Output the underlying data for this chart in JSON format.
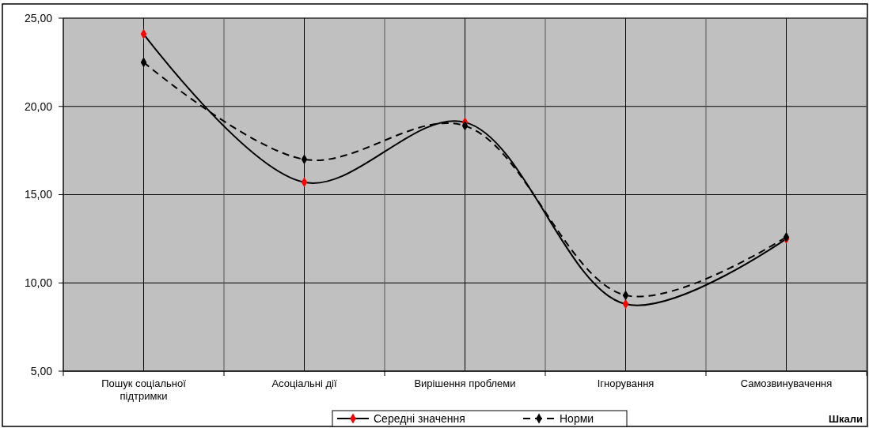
{
  "chart_data": {
    "type": "line",
    "xlabel": "Шкали",
    "categories": [
      "Пошук соціальної підтримки",
      "Асоціальні дії",
      "Вирішення проблеми",
      "Ігнорування",
      "Самозвинувачення"
    ],
    "series": [
      {
        "name": "Середні значення",
        "color": "#ff0000",
        "line_style": "solid",
        "values": [
          24.1,
          15.7,
          19.1,
          8.8,
          12.5
        ]
      },
      {
        "name": "Норми",
        "color": "#000000",
        "line_style": "dashed",
        "values": [
          22.5,
          17.0,
          18.9,
          9.3,
          12.6
        ]
      }
    ],
    "ylim": [
      5,
      25
    ],
    "yticks": [
      {
        "value": 5,
        "label": "5,00"
      },
      {
        "value": 10,
        "label": "10,00"
      },
      {
        "value": 15,
        "label": "15,00"
      },
      {
        "value": 20,
        "label": "20,00"
      },
      {
        "value": 25,
        "label": "25,00"
      }
    ],
    "grid": true,
    "legend": "bottom",
    "marker": "diamond"
  }
}
